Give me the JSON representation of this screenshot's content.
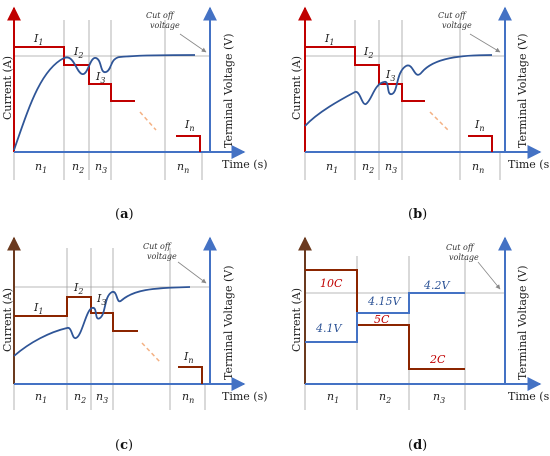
{
  "common": {
    "y_left_label": "Current (A)",
    "y_right_label": "Terminal Voltage (V)",
    "x_label": "Time (s)",
    "cutoff_label_line1": "Cut off",
    "cutoff_label_line2": "voltage",
    "colors": {
      "current": "#c00000",
      "voltage": "#2f5597",
      "axis_blue": "#4472c4",
      "axis_brown": "#6b3a1f",
      "current_d": "#8b2500",
      "grid": "#a0a0a0"
    }
  },
  "panels": [
    {
      "id": "a",
      "caption": "a",
      "current_labels": [
        {
          "name": "I",
          "sub": "1"
        },
        {
          "name": "I",
          "sub": "2"
        },
        {
          "name": "I",
          "sub": "3"
        },
        {
          "name": "I",
          "sub": "n"
        }
      ],
      "interval_labels": [
        {
          "name": "n",
          "sub": "1"
        },
        {
          "name": "n",
          "sub": "2"
        },
        {
          "name": "n",
          "sub": "3"
        },
        {
          "name": "n",
          "sub": "n"
        }
      ]
    },
    {
      "id": "b",
      "caption": "b",
      "current_labels": [
        {
          "name": "I",
          "sub": "1"
        },
        {
          "name": "I",
          "sub": "2"
        },
        {
          "name": "I",
          "sub": "3"
        },
        {
          "name": "I",
          "sub": "n"
        }
      ],
      "interval_labels": [
        {
          "name": "n",
          "sub": "1"
        },
        {
          "name": "n",
          "sub": "2"
        },
        {
          "name": "n",
          "sub": "3"
        },
        {
          "name": "n",
          "sub": "n"
        }
      ]
    },
    {
      "id": "c",
      "caption": "c",
      "current_labels": [
        {
          "name": "I",
          "sub": "1"
        },
        {
          "name": "I",
          "sub": "2"
        },
        {
          "name": "I",
          "sub": "3"
        },
        {
          "name": "I",
          "sub": "n"
        }
      ],
      "interval_labels": [
        {
          "name": "n",
          "sub": "1"
        },
        {
          "name": "n",
          "sub": "2"
        },
        {
          "name": "n",
          "sub": "3"
        },
        {
          "name": "n",
          "sub": "n"
        }
      ]
    },
    {
      "id": "d",
      "caption": "d",
      "current_labels": [
        {
          "text": "10C"
        },
        {
          "text": "5C"
        },
        {
          "text": "2C"
        }
      ],
      "voltage_labels": [
        {
          "text": "4.1V"
        },
        {
          "text": "4.15V"
        },
        {
          "text": "4.2V"
        }
      ],
      "interval_labels": [
        {
          "name": "n",
          "sub": "1"
        },
        {
          "name": "n",
          "sub": "2"
        },
        {
          "name": "n",
          "sub": "3"
        }
      ]
    }
  ]
}
